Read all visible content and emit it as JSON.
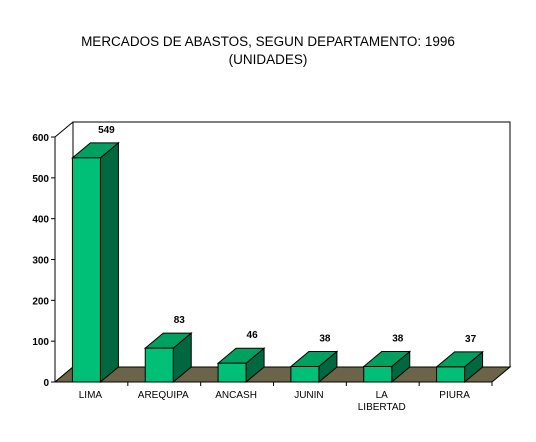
{
  "chart_data": {
    "type": "bar",
    "title": "MERCADOS DE ABASTOS, SEGUN DEPARTAMENTO: 1996",
    "subtitle": "(UNIDADES)",
    "categories": [
      [
        "LIMA"
      ],
      [
        "AREQUIPA"
      ],
      [
        "ANCASH"
      ],
      [
        "JUNIN"
      ],
      [
        "LA",
        "LIBERTAD"
      ],
      [
        "PIURA"
      ]
    ],
    "values": [
      549,
      83,
      46,
      38,
      38,
      37
    ],
    "ylim": [
      0,
      600
    ],
    "yticks": [
      0,
      100,
      200,
      300,
      400,
      500,
      600
    ],
    "grid": false,
    "legend": "none",
    "colors": {
      "bar_front": "#00c078",
      "bar_top": "#00a060",
      "bar_side": "#006840",
      "floor": "#6b6448"
    }
  }
}
